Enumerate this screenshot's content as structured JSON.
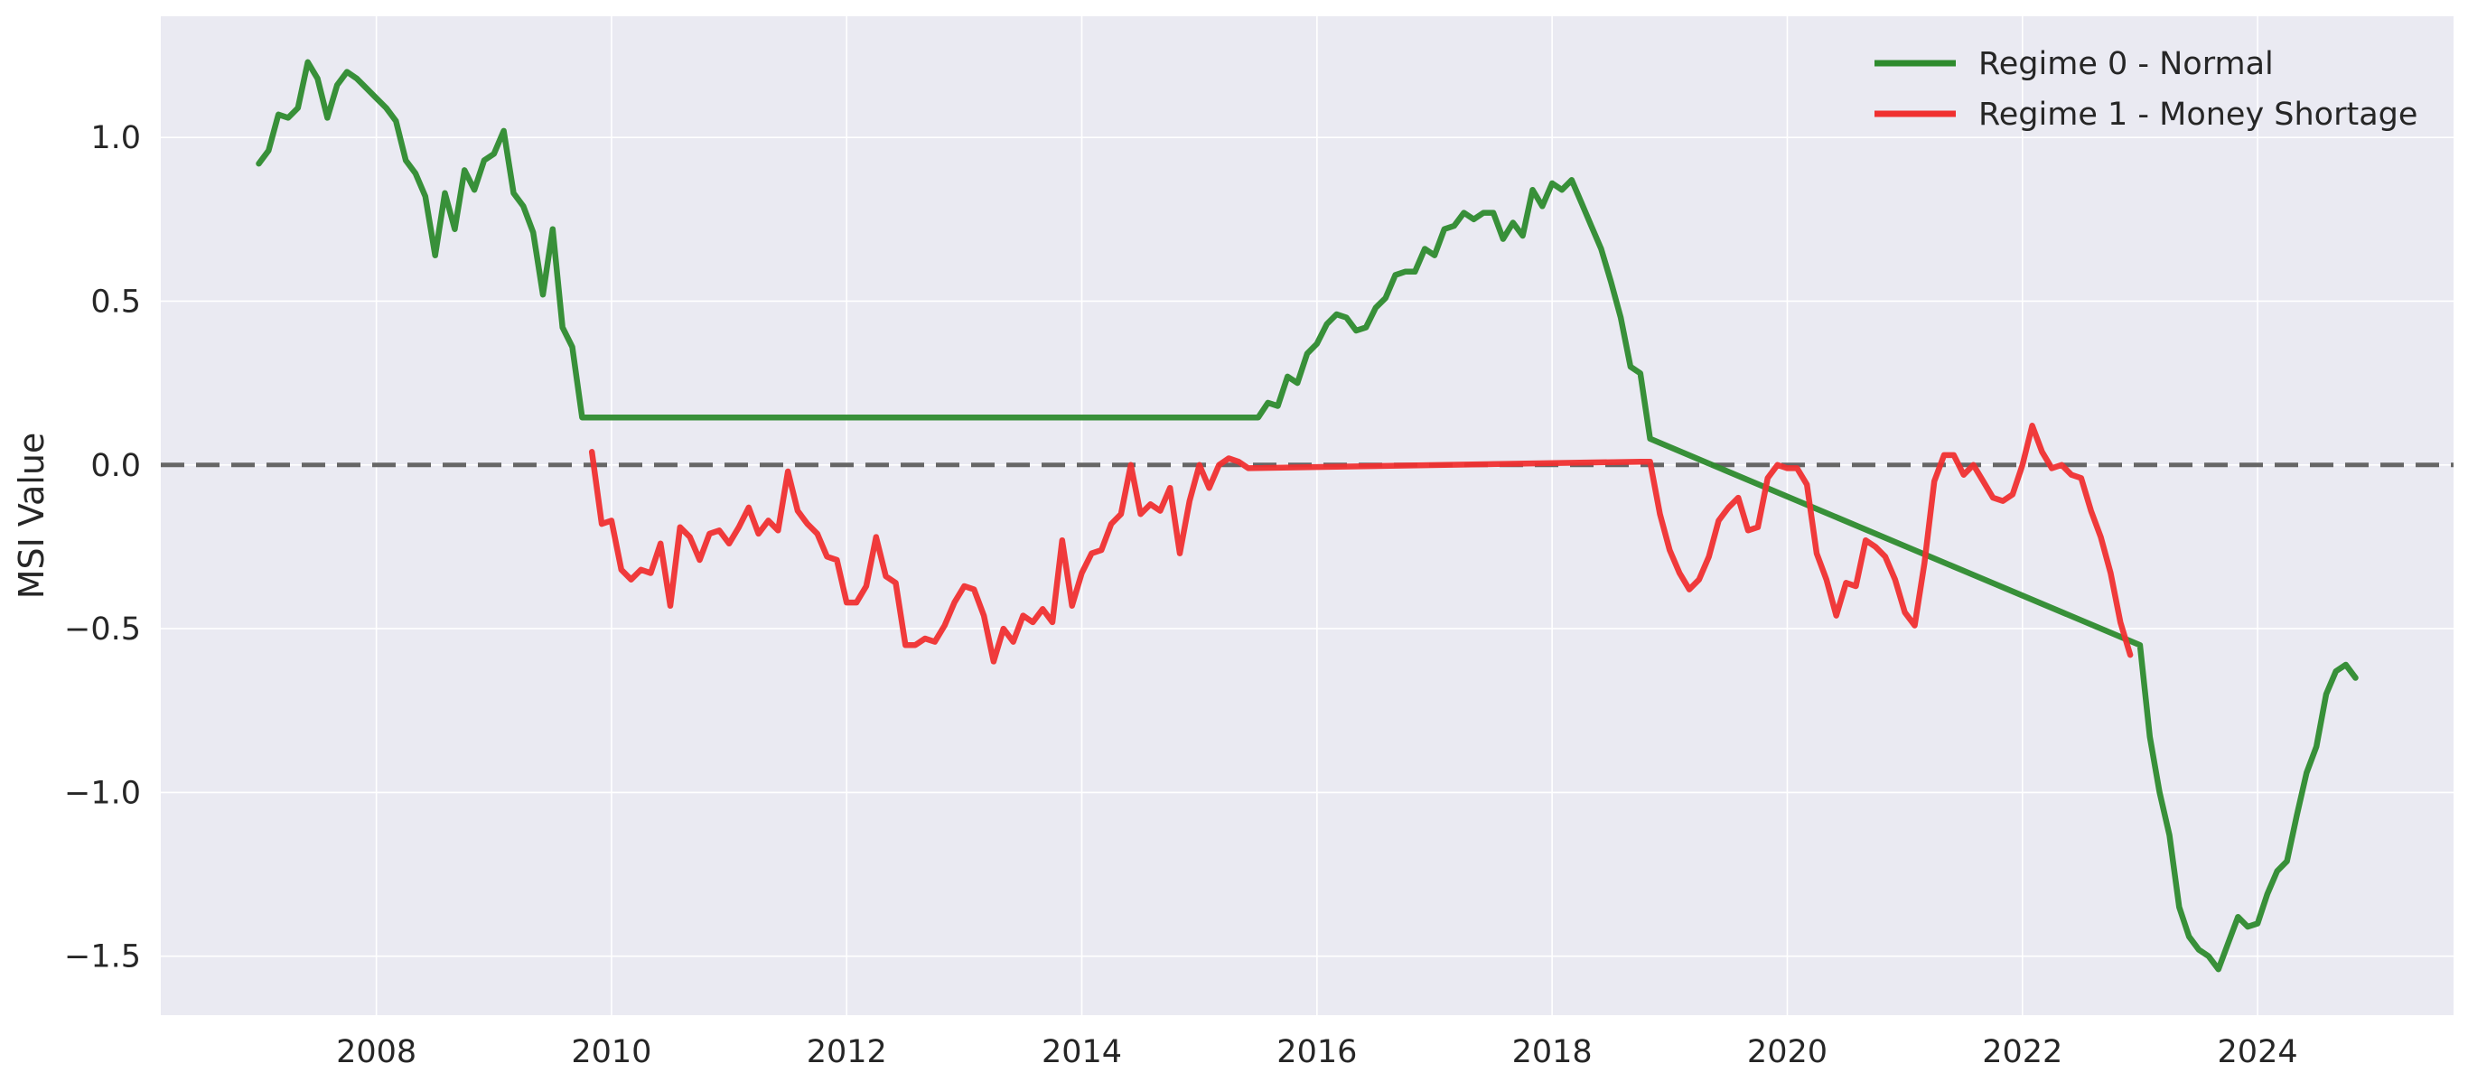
{
  "chart_data": {
    "type": "line",
    "ylabel": "MSI Value",
    "xlim": [
      "2006-03-01",
      "2025-09-01"
    ],
    "ylim": [
      -1.68,
      1.37
    ],
    "grid": true,
    "legend_position": "top-right",
    "reference_line": {
      "y": 0,
      "style": "dashed",
      "color": "#666666"
    },
    "x_ticks": [
      "2008",
      "2010",
      "2012",
      "2014",
      "2016",
      "2018",
      "2020",
      "2022",
      "2024"
    ],
    "y_ticks": [
      {
        "value": 1.0,
        "label": "1.0"
      },
      {
        "value": 0.5,
        "label": "0.5"
      },
      {
        "value": 0.0,
        "label": "0.0"
      },
      {
        "value": -0.5,
        "label": "−0.5"
      },
      {
        "value": -1.0,
        "label": "−1.0"
      },
      {
        "value": -1.5,
        "label": "−1.5"
      }
    ],
    "series": [
      {
        "name": "Regime 0 - Normal",
        "color": "#2e8b2e",
        "points": [
          [
            "2007-01-01",
            0.92
          ],
          [
            "2007-02-01",
            0.96
          ],
          [
            "2007-03-01",
            1.07
          ],
          [
            "2007-04-01",
            1.06
          ],
          [
            "2007-05-01",
            1.09
          ],
          [
            "2007-06-01",
            1.23
          ],
          [
            "2007-07-01",
            1.18
          ],
          [
            "2007-08-01",
            1.06
          ],
          [
            "2007-09-01",
            1.16
          ],
          [
            "2007-10-01",
            1.2
          ],
          [
            "2007-11-01",
            1.18
          ],
          [
            "2007-12-01",
            1.15
          ],
          [
            "2008-01-01",
            1.12
          ],
          [
            "2008-02-01",
            1.09
          ],
          [
            "2008-03-01",
            1.05
          ],
          [
            "2008-04-01",
            0.93
          ],
          [
            "2008-05-01",
            0.89
          ],
          [
            "2008-06-01",
            0.82
          ],
          [
            "2008-07-01",
            0.64
          ],
          [
            "2008-08-01",
            0.83
          ],
          [
            "2008-09-01",
            0.72
          ],
          [
            "2008-10-01",
            0.9
          ],
          [
            "2008-11-01",
            0.84
          ],
          [
            "2008-12-01",
            0.93
          ],
          [
            "2009-01-01",
            0.95
          ],
          [
            "2009-02-01",
            1.02
          ],
          [
            "2009-03-01",
            0.83
          ],
          [
            "2009-04-01",
            0.79
          ],
          [
            "2009-05-01",
            0.71
          ],
          [
            "2009-06-01",
            0.52
          ],
          [
            "2009-07-01",
            0.72
          ],
          [
            "2009-08-01",
            0.42
          ],
          [
            "2009-09-01",
            0.36
          ],
          [
            "2009-10-01",
            0.145
          ],
          [
            "2015-07-01",
            0.145
          ],
          [
            "2015-08-01",
            0.19
          ],
          [
            "2015-09-01",
            0.18
          ],
          [
            "2015-10-01",
            0.27
          ],
          [
            "2015-11-01",
            0.25
          ],
          [
            "2015-12-01",
            0.34
          ],
          [
            "2016-01-01",
            0.37
          ],
          [
            "2016-02-01",
            0.43
          ],
          [
            "2016-03-01",
            0.46
          ],
          [
            "2016-04-01",
            0.45
          ],
          [
            "2016-05-01",
            0.41
          ],
          [
            "2016-06-01",
            0.42
          ],
          [
            "2016-07-01",
            0.48
          ],
          [
            "2016-08-01",
            0.51
          ],
          [
            "2016-09-01",
            0.58
          ],
          [
            "2016-10-01",
            0.59
          ],
          [
            "2016-11-01",
            0.59
          ],
          [
            "2016-12-01",
            0.66
          ],
          [
            "2017-01-01",
            0.64
          ],
          [
            "2017-02-01",
            0.72
          ],
          [
            "2017-03-01",
            0.73
          ],
          [
            "2017-04-01",
            0.77
          ],
          [
            "2017-05-01",
            0.75
          ],
          [
            "2017-06-01",
            0.77
          ],
          [
            "2017-07-01",
            0.77
          ],
          [
            "2017-08-01",
            0.69
          ],
          [
            "2017-09-01",
            0.74
          ],
          [
            "2017-10-01",
            0.7
          ],
          [
            "2017-11-01",
            0.84
          ],
          [
            "2017-12-01",
            0.79
          ],
          [
            "2018-01-01",
            0.86
          ],
          [
            "2018-02-01",
            0.84
          ],
          [
            "2018-03-01",
            0.87
          ],
          [
            "2018-04-01",
            0.8
          ],
          [
            "2018-05-01",
            0.73
          ],
          [
            "2018-06-01",
            0.66
          ],
          [
            "2018-07-01",
            0.56
          ],
          [
            "2018-08-01",
            0.45
          ],
          [
            "2018-09-01",
            0.3
          ],
          [
            "2018-10-01",
            0.28
          ],
          [
            "2018-11-01",
            0.08
          ],
          [
            "2023-01-01",
            -0.55
          ],
          [
            "2023-02-01",
            -0.83
          ],
          [
            "2023-03-01",
            -1.0
          ],
          [
            "2023-04-01",
            -1.13
          ],
          [
            "2023-05-01",
            -1.35
          ],
          [
            "2023-06-01",
            -1.44
          ],
          [
            "2023-07-01",
            -1.48
          ],
          [
            "2023-08-01",
            -1.5
          ],
          [
            "2023-09-01",
            -1.54
          ],
          [
            "2023-10-01",
            -1.46
          ],
          [
            "2023-11-01",
            -1.38
          ],
          [
            "2023-12-01",
            -1.41
          ],
          [
            "2024-01-01",
            -1.4
          ],
          [
            "2024-02-01",
            -1.31
          ],
          [
            "2024-03-01",
            -1.24
          ],
          [
            "2024-04-01",
            -1.21
          ],
          [
            "2024-05-01",
            -1.07
          ],
          [
            "2024-06-01",
            -0.94
          ],
          [
            "2024-07-01",
            -0.86
          ],
          [
            "2024-08-01",
            -0.7
          ],
          [
            "2024-09-01",
            -0.63
          ],
          [
            "2024-10-01",
            -0.61
          ],
          [
            "2024-11-01",
            -0.65
          ]
        ]
      },
      {
        "name": "Regime 1 - Money Shortage",
        "color": "#f03030",
        "points": [
          [
            "2009-11-01",
            0.04
          ],
          [
            "2009-12-01",
            -0.18
          ],
          [
            "2010-01-01",
            -0.17
          ],
          [
            "2010-02-01",
            -0.32
          ],
          [
            "2010-03-01",
            -0.35
          ],
          [
            "2010-04-01",
            -0.32
          ],
          [
            "2010-05-01",
            -0.33
          ],
          [
            "2010-06-01",
            -0.24
          ],
          [
            "2010-07-01",
            -0.43
          ],
          [
            "2010-08-01",
            -0.19
          ],
          [
            "2010-09-01",
            -0.22
          ],
          [
            "2010-10-01",
            -0.29
          ],
          [
            "2010-11-01",
            -0.21
          ],
          [
            "2010-12-01",
            -0.2
          ],
          [
            "2011-01-01",
            -0.24
          ],
          [
            "2011-02-01",
            -0.19
          ],
          [
            "2011-03-01",
            -0.13
          ],
          [
            "2011-04-01",
            -0.21
          ],
          [
            "2011-05-01",
            -0.17
          ],
          [
            "2011-06-01",
            -0.2
          ],
          [
            "2011-07-01",
            -0.02
          ],
          [
            "2011-08-01",
            -0.14
          ],
          [
            "2011-09-01",
            -0.18
          ],
          [
            "2011-10-01",
            -0.21
          ],
          [
            "2011-11-01",
            -0.28
          ],
          [
            "2011-12-01",
            -0.29
          ],
          [
            "2012-01-01",
            -0.42
          ],
          [
            "2012-02-01",
            -0.42
          ],
          [
            "2012-03-01",
            -0.37
          ],
          [
            "2012-04-01",
            -0.22
          ],
          [
            "2012-05-01",
            -0.34
          ],
          [
            "2012-06-01",
            -0.36
          ],
          [
            "2012-07-01",
            -0.55
          ],
          [
            "2012-08-01",
            -0.55
          ],
          [
            "2012-09-01",
            -0.53
          ],
          [
            "2012-10-01",
            -0.54
          ],
          [
            "2012-11-01",
            -0.49
          ],
          [
            "2012-12-01",
            -0.42
          ],
          [
            "2013-01-01",
            -0.37
          ],
          [
            "2013-02-01",
            -0.38
          ],
          [
            "2013-03-01",
            -0.46
          ],
          [
            "2013-04-01",
            -0.6
          ],
          [
            "2013-05-01",
            -0.5
          ],
          [
            "2013-06-01",
            -0.54
          ],
          [
            "2013-07-01",
            -0.46
          ],
          [
            "2013-08-01",
            -0.48
          ],
          [
            "2013-09-01",
            -0.44
          ],
          [
            "2013-10-01",
            -0.48
          ],
          [
            "2013-11-01",
            -0.23
          ],
          [
            "2013-12-01",
            -0.43
          ],
          [
            "2014-01-01",
            -0.33
          ],
          [
            "2014-02-01",
            -0.27
          ],
          [
            "2014-03-01",
            -0.26
          ],
          [
            "2014-04-01",
            -0.18
          ],
          [
            "2014-05-01",
            -0.15
          ],
          [
            "2014-06-01",
            0.0
          ],
          [
            "2014-07-01",
            -0.15
          ],
          [
            "2014-08-01",
            -0.12
          ],
          [
            "2014-09-01",
            -0.14
          ],
          [
            "2014-10-01",
            -0.07
          ],
          [
            "2014-11-01",
            -0.27
          ],
          [
            "2014-12-01",
            -0.11
          ],
          [
            "2015-01-01",
            0.0
          ],
          [
            "2015-02-01",
            -0.07
          ],
          [
            "2015-03-01",
            0.0
          ],
          [
            "2015-04-01",
            0.02
          ],
          [
            "2015-05-01",
            0.01
          ],
          [
            "2015-06-01",
            -0.01
          ],
          [
            "2018-10-01",
            0.01
          ],
          [
            "2018-11-01",
            0.01
          ],
          [
            "2018-12-01",
            -0.15
          ],
          [
            "2019-01-01",
            -0.26
          ],
          [
            "2019-02-01",
            -0.33
          ],
          [
            "2019-03-01",
            -0.38
          ],
          [
            "2019-04-01",
            -0.35
          ],
          [
            "2019-05-01",
            -0.28
          ],
          [
            "2019-06-01",
            -0.17
          ],
          [
            "2019-07-01",
            -0.13
          ],
          [
            "2019-08-01",
            -0.1
          ],
          [
            "2019-09-01",
            -0.2
          ],
          [
            "2019-10-01",
            -0.19
          ],
          [
            "2019-11-01",
            -0.04
          ],
          [
            "2019-12-01",
            0.0
          ],
          [
            "2020-01-01",
            -0.01
          ],
          [
            "2020-02-01",
            -0.01
          ],
          [
            "2020-03-01",
            -0.06
          ],
          [
            "2020-04-01",
            -0.27
          ],
          [
            "2020-05-01",
            -0.35
          ],
          [
            "2020-06-01",
            -0.46
          ],
          [
            "2020-07-01",
            -0.36
          ],
          [
            "2020-08-01",
            -0.37
          ],
          [
            "2020-09-01",
            -0.23
          ],
          [
            "2020-10-01",
            -0.25
          ],
          [
            "2020-11-01",
            -0.28
          ],
          [
            "2020-12-01",
            -0.35
          ],
          [
            "2021-01-01",
            -0.45
          ],
          [
            "2021-02-01",
            -0.49
          ],
          [
            "2021-03-01",
            -0.3
          ],
          [
            "2021-04-01",
            -0.05
          ],
          [
            "2021-05-01",
            0.03
          ],
          [
            "2021-06-01",
            0.03
          ],
          [
            "2021-07-01",
            -0.03
          ],
          [
            "2021-08-01",
            0.0
          ],
          [
            "2021-09-01",
            -0.05
          ],
          [
            "2021-10-01",
            -0.1
          ],
          [
            "2021-11-01",
            -0.11
          ],
          [
            "2021-12-01",
            -0.09
          ],
          [
            "2022-01-01",
            0.0
          ],
          [
            "2022-02-01",
            0.12
          ],
          [
            "2022-03-01",
            0.04
          ],
          [
            "2022-04-01",
            -0.01
          ],
          [
            "2022-05-01",
            0.0
          ],
          [
            "2022-06-01",
            -0.03
          ],
          [
            "2022-07-01",
            -0.04
          ],
          [
            "2022-08-01",
            -0.14
          ],
          [
            "2022-09-01",
            -0.22
          ],
          [
            "2022-10-01",
            -0.33
          ],
          [
            "2022-11-01",
            -0.48
          ],
          [
            "2022-12-01",
            -0.58
          ]
        ]
      }
    ]
  }
}
